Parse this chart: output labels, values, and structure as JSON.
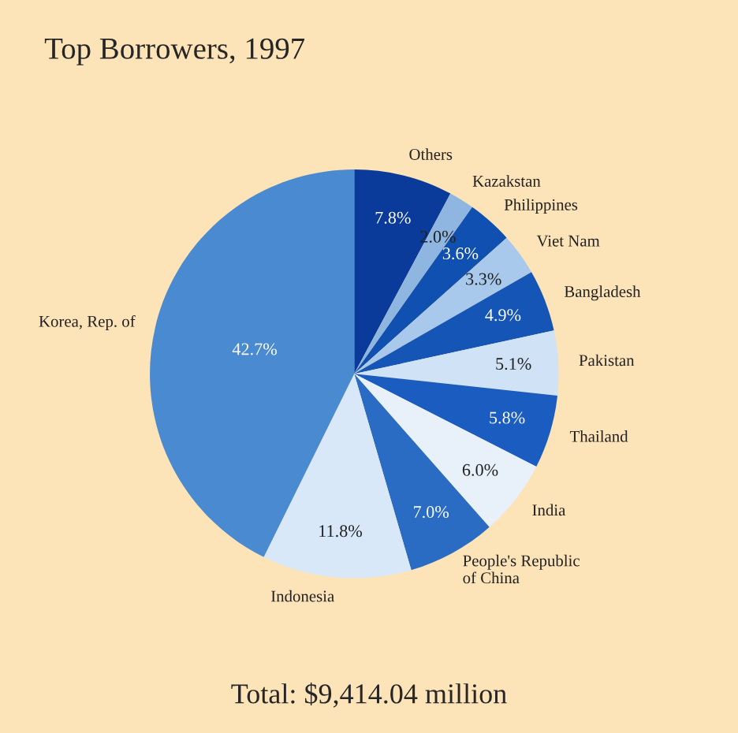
{
  "chart_data": {
    "type": "pie",
    "title": "Top Borrowers, 1997",
    "categories": [
      "Others",
      "Kazakstan",
      "Philippines",
      "Viet Nam",
      "Bangladesh",
      "Pakistan",
      "Thailand",
      "India",
      "People's Republic\nof China",
      "Indonesia",
      "Korea, Rep. of"
    ],
    "values": [
      7.8,
      2.0,
      3.6,
      3.3,
      4.9,
      5.1,
      5.8,
      6.0,
      7.0,
      11.8,
      42.7
    ],
    "colors": [
      "#0a3a9a",
      "#8fb6e0",
      "#1050b0",
      "#a8c8ec",
      "#1555b5",
      "#d0e2f5",
      "#1a5cc0",
      "#e8f0fa",
      "#2a6cc4",
      "#d8e8f8",
      "#4a8ad0"
    ],
    "value_labels": [
      "7.8%",
      "2.0%",
      "3.6%",
      "3.3%",
      "4.9%",
      "5.1%",
      "5.8%",
      "6.0%",
      "7.0%",
      "11.8%",
      "42.7%"
    ],
    "annotations": [
      "Total: $9,414.04 million"
    ]
  }
}
